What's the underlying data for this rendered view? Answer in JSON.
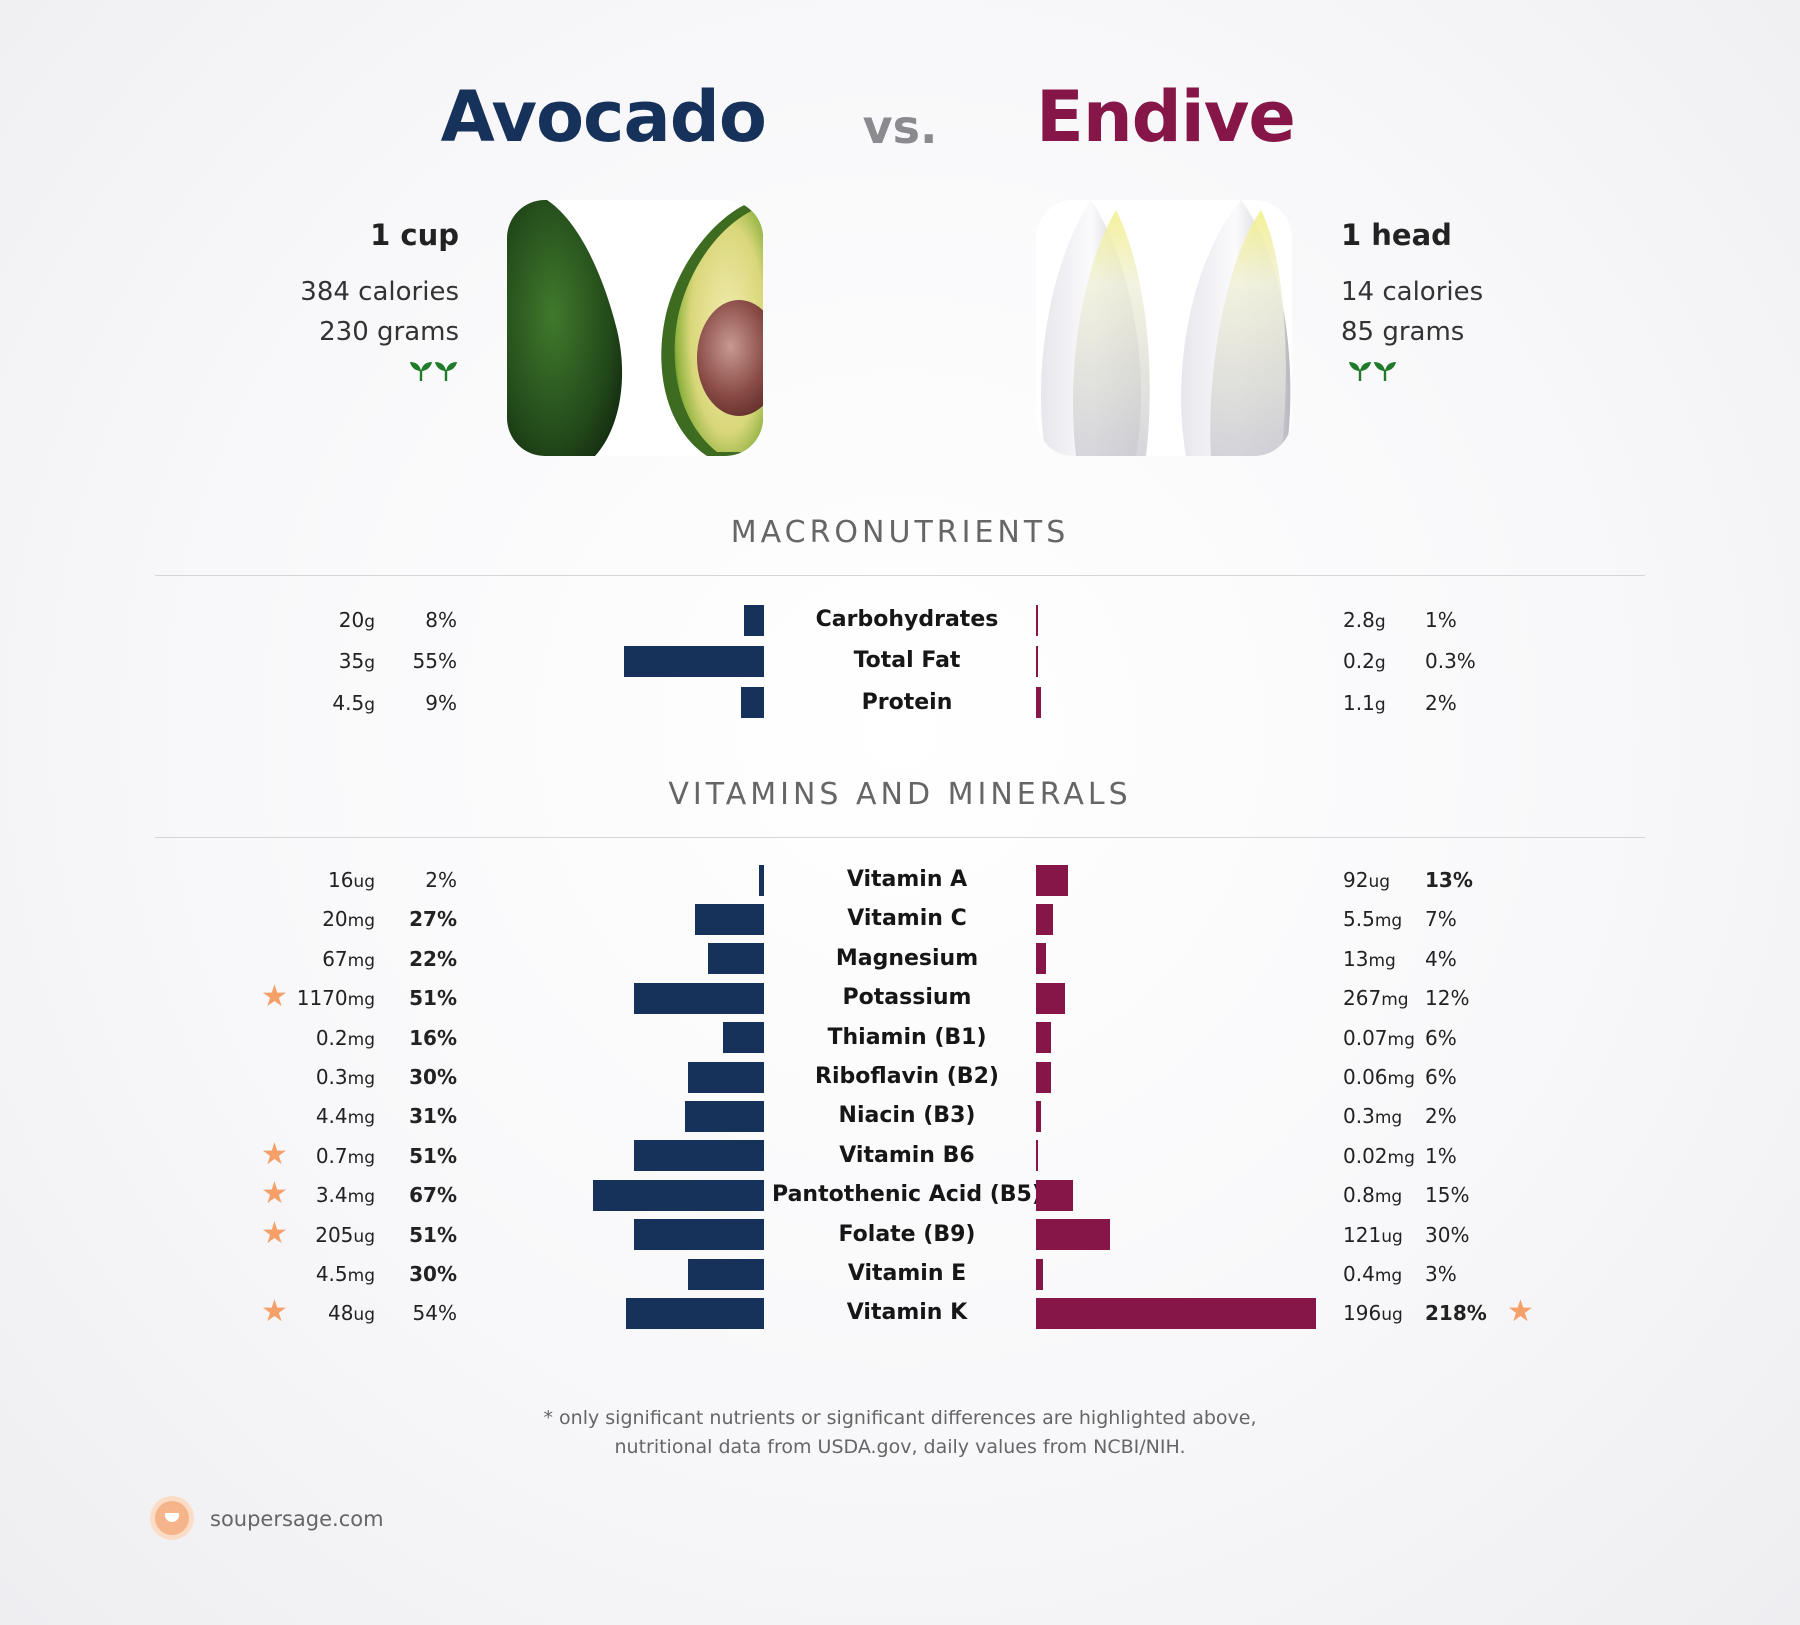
{
  "header": {
    "left_food": "Avocado",
    "vs": "vs.",
    "right_food": "Endive"
  },
  "left": {
    "serving": "1 cup",
    "calories": "384 calories",
    "grams": "230 grams",
    "sprout_icon": "sprout-icon",
    "color": "#16315a"
  },
  "right": {
    "serving": "1 head",
    "calories": "14 calories",
    "grams": "85 grams",
    "sprout_icon": "sprout-icon",
    "color": "#861548"
  },
  "sections": {
    "macros": "MACRONUTRIENTS",
    "vitamins": "VITAMINS AND MINERALS"
  },
  "chart_data": [
    {
      "type": "bar",
      "title": "MACRONUTRIENTS",
      "orientation": "diverging-horizontal",
      "categories": [
        "Carbohydrates",
        "Total Fat",
        "Protein"
      ],
      "series": [
        {
          "name": "Avocado",
          "amount_values": [
            20,
            35,
            4.5
          ],
          "amount_units": [
            "g",
            "g",
            "g"
          ],
          "amount_text": [
            "20",
            "35",
            "4.5"
          ],
          "values": [
            8,
            55,
            9
          ],
          "pct_text": [
            "8%",
            "55%",
            "9%"
          ],
          "pct_bold": [
            false,
            false,
            false
          ],
          "starred": [
            false,
            false,
            false
          ]
        },
        {
          "name": "Endive",
          "amount_values": [
            2.8,
            0.2,
            1.1
          ],
          "amount_units": [
            "g",
            "g",
            "g"
          ],
          "amount_text": [
            "2.8",
            "0.2",
            "1.1"
          ],
          "values": [
            1,
            0.3,
            2
          ],
          "pct_text": [
            "1%",
            "0.3%",
            "2%"
          ],
          "pct_bold": [
            false,
            false,
            false
          ],
          "starred": [
            false,
            false,
            false
          ]
        }
      ]
    },
    {
      "type": "bar",
      "title": "VITAMINS AND MINERALS",
      "orientation": "diverging-horizontal",
      "categories": [
        "Vitamin A",
        "Vitamin C",
        "Magnesium",
        "Potassium",
        "Thiamin (B1)",
        "Riboflavin (B2)",
        "Niacin (B3)",
        "Vitamin B6",
        "Pantothenic Acid (B5)",
        "Folate (B9)",
        "Vitamin E",
        "Vitamin K"
      ],
      "series": [
        {
          "name": "Avocado",
          "amount_values": [
            16,
            20,
            67,
            1170,
            0.2,
            0.3,
            4.4,
            0.7,
            3.4,
            205,
            4.5,
            48
          ],
          "amount_units": [
            "ug",
            "mg",
            "mg",
            "mg",
            "mg",
            "mg",
            "mg",
            "mg",
            "mg",
            "ug",
            "mg",
            "ug"
          ],
          "amount_text": [
            "16",
            "20",
            "67",
            "1170",
            "0.2",
            "0.3",
            "4.4",
            "0.7",
            "3.4",
            "205",
            "4.5",
            "48"
          ],
          "values": [
            2,
            27,
            22,
            51,
            16,
            30,
            31,
            51,
            67,
            51,
            30,
            54
          ],
          "pct_text": [
            "2%",
            "27%",
            "22%",
            "51%",
            "16%",
            "30%",
            "31%",
            "51%",
            "67%",
            "51%",
            "30%",
            "54%"
          ],
          "pct_bold": [
            false,
            true,
            true,
            true,
            true,
            true,
            true,
            true,
            true,
            true,
            true,
            false
          ],
          "starred": [
            false,
            false,
            false,
            true,
            false,
            false,
            false,
            true,
            true,
            true,
            false,
            true
          ]
        },
        {
          "name": "Endive",
          "amount_values": [
            92,
            5.5,
            13,
            267,
            0.07,
            0.06,
            0.3,
            0.02,
            0.8,
            121,
            0.4,
            196
          ],
          "amount_units": [
            "ug",
            "mg",
            "mg",
            "mg",
            "mg",
            "mg",
            "mg",
            "mg",
            "mg",
            "ug",
            "mg",
            "ug"
          ],
          "amount_text": [
            "92",
            "5.5",
            "13",
            "267",
            "0.07",
            "0.06",
            "0.3",
            "0.02",
            "0.8",
            "121",
            "0.4",
            "196"
          ],
          "values": [
            13,
            7,
            4,
            12,
            6,
            6,
            2,
            1,
            15,
            30,
            3,
            218
          ],
          "pct_text": [
            "13%",
            "7%",
            "4%",
            "12%",
            "6%",
            "6%",
            "2%",
            "1%",
            "15%",
            "30%",
            "3%",
            "218%"
          ],
          "pct_bold": [
            true,
            false,
            false,
            false,
            false,
            false,
            false,
            false,
            false,
            false,
            false,
            true
          ],
          "starred": [
            false,
            false,
            false,
            false,
            false,
            false,
            false,
            false,
            false,
            false,
            false,
            true
          ]
        }
      ]
    }
  ],
  "icons": {
    "star": "star-icon",
    "star_color": "#f4a068"
  },
  "footer": {
    "line1": "* only significant nutrients or significant differences are highlighted above,",
    "line2": "nutritional data from USDA.gov, daily values from NCBI/NIH."
  },
  "brand": {
    "name": "soupersage.com",
    "logo_icon": "soup-bowl-icon"
  }
}
